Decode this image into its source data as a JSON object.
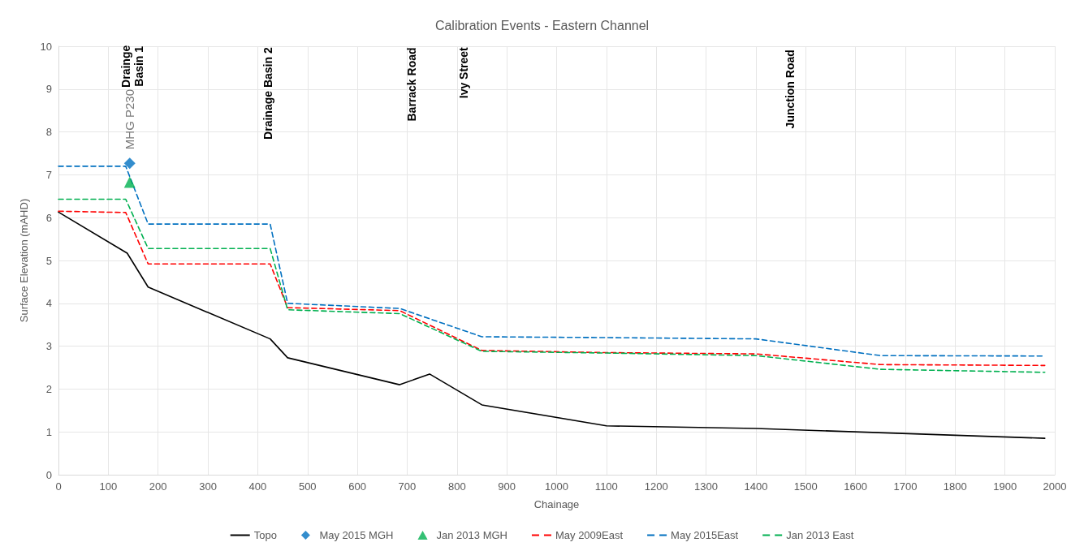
{
  "chart_data": {
    "type": "line",
    "title": "Calibration Events - Eastern Channel",
    "xlabel": "Chainage",
    "ylabel": "Surface Elevation (mAHD)",
    "xlim": [
      0,
      2000
    ],
    "xticks": [
      0,
      100,
      200,
      300,
      400,
      500,
      600,
      700,
      800,
      900,
      1000,
      1100,
      1200,
      1300,
      1400,
      1500,
      1600,
      1700,
      1800,
      1900,
      2000
    ],
    "ylim": [
      0,
      10
    ],
    "yticks": [
      0,
      1,
      2,
      3,
      4,
      5,
      6,
      7,
      8,
      9,
      10
    ],
    "grid": true,
    "legend": "bottom",
    "annotations": [
      "Drainge\nBasin 1",
      "Drainage Basin 2",
      "Barrack Road",
      "Ivy Street",
      "Junction Road"
    ],
    "series": [
      {
        "name": "Topo",
        "color": "#000000",
        "line_style": "solid",
        "marker": "none",
        "x": [
          0,
          138,
          180,
          425,
          460,
          685,
          745,
          850,
          1100,
          1400,
          1980
        ],
        "values": [
          6.13,
          5.17,
          4.38,
          3.17,
          2.73,
          2.1,
          2.35,
          1.63,
          1.14,
          1.08,
          0.85
        ]
      },
      {
        "name": "May 2015 MGH",
        "type": "scatter",
        "color": "#0070c0",
        "marker": "diamond",
        "x": [
          143
        ],
        "values": [
          7.27
        ],
        "value_labels": [
          "MHG P230"
        ]
      },
      {
        "name": "Jan 2013 MGH",
        "type": "scatter",
        "color": "#00b050",
        "marker": "triangle",
        "x": [
          143
        ],
        "values": [
          6.83
        ]
      },
      {
        "name": "May 2009East",
        "color": "#ff0000",
        "line_style": "dashed",
        "marker": "none",
        "x": [
          0,
          135,
          180,
          425,
          460,
          685,
          850,
          1100,
          1400,
          1650,
          1980
        ],
        "values": [
          6.15,
          6.12,
          4.92,
          4.92,
          3.9,
          3.83,
          2.9,
          2.85,
          2.82,
          2.57,
          2.55
        ]
      },
      {
        "name": "May 2015East",
        "color": "#0070c0",
        "line_style": "dashed",
        "marker": "none",
        "x": [
          0,
          135,
          180,
          425,
          460,
          685,
          850,
          1100,
          1400,
          1650,
          1980
        ],
        "values": [
          7.2,
          7.2,
          5.85,
          5.85,
          4.0,
          3.88,
          3.22,
          3.2,
          3.17,
          2.78,
          2.77
        ]
      },
      {
        "name": "Jan 2013 East",
        "color": "#00b050",
        "line_style": "dashed",
        "marker": "none",
        "x": [
          0,
          135,
          180,
          425,
          460,
          685,
          850,
          1100,
          1400,
          1650,
          1980
        ],
        "values": [
          6.43,
          6.43,
          5.28,
          5.28,
          3.85,
          3.76,
          2.88,
          2.84,
          2.78,
          2.46,
          2.39
        ]
      }
    ]
  }
}
